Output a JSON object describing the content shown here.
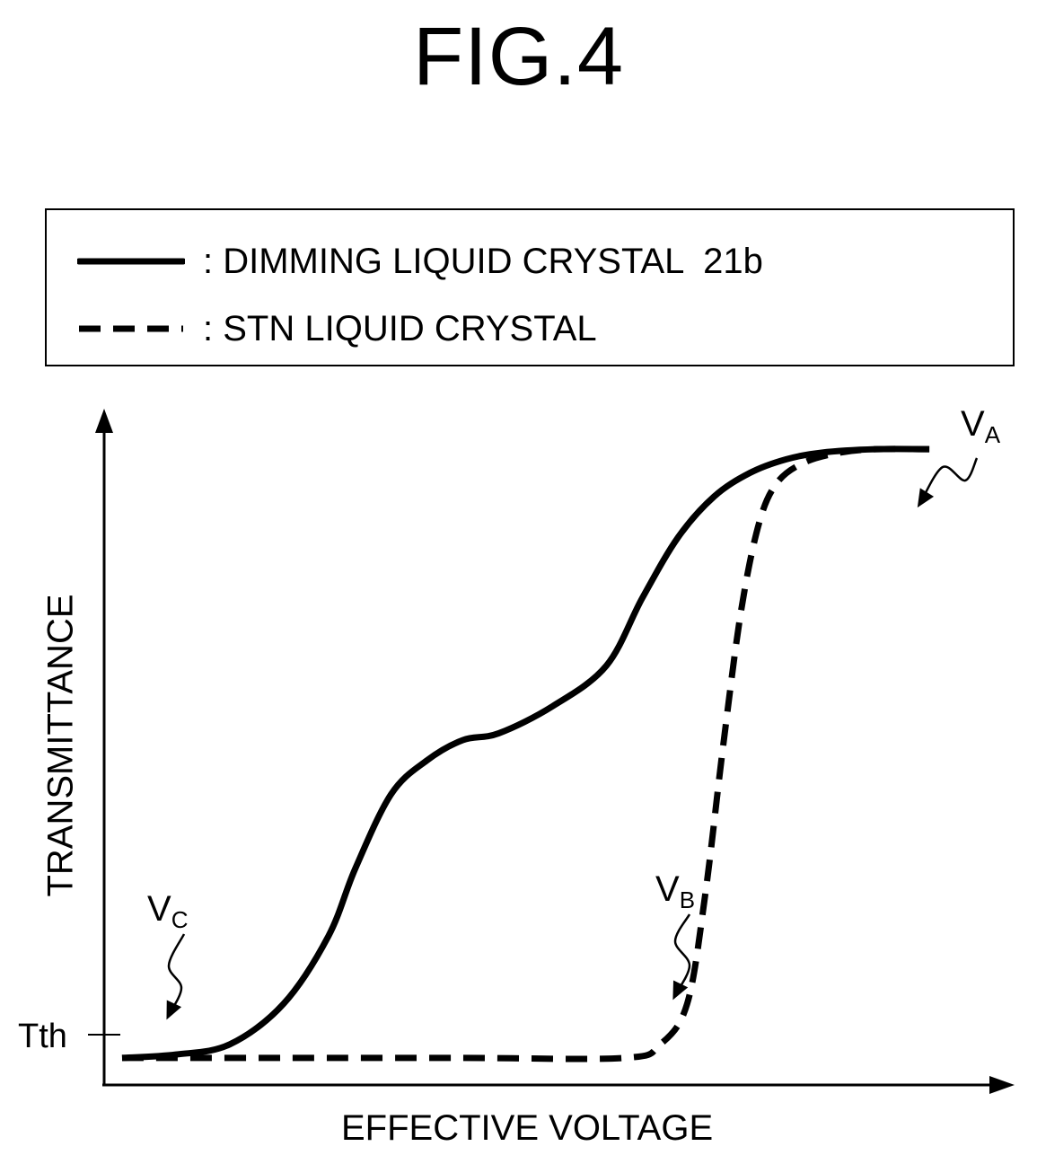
{
  "figure": {
    "title": "FIG.4"
  },
  "legend": {
    "items": [
      {
        "style": "solid",
        "label": ": DIMMING LIQUID CRYSTAL  21b"
      },
      {
        "style": "dashed",
        "label": ": STN LIQUID CRYSTAL"
      }
    ]
  },
  "chart_data": {
    "type": "line",
    "title": "",
    "xlabel": "EFFECTIVE VOLTAGE",
    "ylabel": "TRANSMITTANCE",
    "xlim": [
      0,
      100
    ],
    "ylim": [
      0,
      100
    ],
    "grid": false,
    "legend_position": "top",
    "y_tick_labels": [
      {
        "label": "Tth",
        "y": 7
      }
    ],
    "series": [
      {
        "name": "DIMMING LIQUID CRYSTAL 21b",
        "style": "solid",
        "x": [
          2,
          8,
          14,
          20,
          25,
          28,
          32,
          36,
          40,
          44,
          50,
          56,
          60,
          64,
          68,
          72,
          76,
          80,
          86,
          92
        ],
        "y": [
          4,
          4.5,
          6,
          12,
          22,
          32,
          43,
          48,
          51,
          52,
          56,
          62,
          72,
          81,
          87,
          90.5,
          92.5,
          93.5,
          94,
          94
        ]
      },
      {
        "name": "STN LIQUID CRYSTAL",
        "style": "dashed",
        "x": [
          2,
          20,
          40,
          58,
          62,
          65,
          67,
          69,
          71,
          73,
          75,
          78,
          82,
          86,
          92
        ],
        "y": [
          4,
          4,
          4,
          4,
          6,
          12,
          28,
          50,
          70,
          83,
          89,
          92,
          93.5,
          94,
          94
        ]
      }
    ],
    "annotations": [
      {
        "label": "V",
        "sub": "C",
        "x": 6,
        "y": 4
      },
      {
        "label": "V",
        "sub": "B",
        "x": 58,
        "y": 4
      },
      {
        "label": "V",
        "sub": "A",
        "x": 84,
        "y": 94
      }
    ]
  }
}
